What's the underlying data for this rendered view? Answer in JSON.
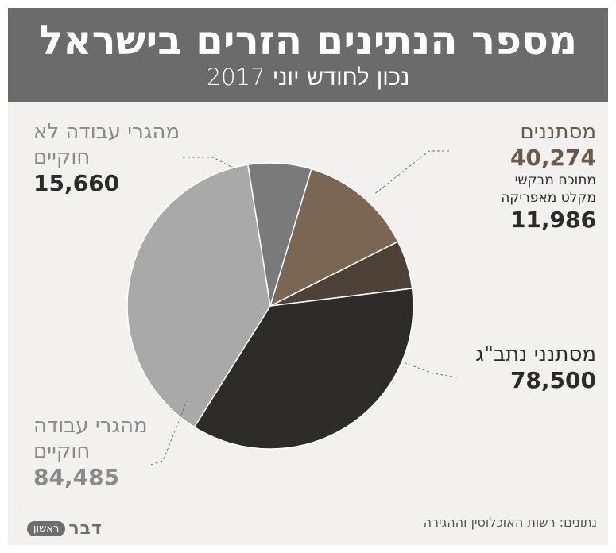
{
  "header": {
    "title": "מספר הנתינים הזרים בישראל",
    "subtitle": "נכון לחודש יוני 2017"
  },
  "labels": {
    "illegal_workers": {
      "name": "מהגרי עבודה לא חוקיים",
      "value": "15,660"
    },
    "asylum_seekers": {
      "name": "מסתננים",
      "value": "40,274",
      "sub_line1": "מתוכם מבקשי",
      "sub_line2": "מקלט מאפריקה",
      "sub_value": "11,986"
    },
    "ben_g": {
      "name": "מסתנני נתב\"ג",
      "value": "78,500"
    },
    "legal_workers": {
      "name_line1": "מהגרי עבודה",
      "name_line2": "חוקיים",
      "value": "84,485"
    }
  },
  "footer": {
    "source": "נתונים: רשות האוכלוסין וההגירה",
    "logo_pill": "ראשון",
    "logo_word": "דבר"
  },
  "colors": {
    "header_bg": "#6b6b6b",
    "background": "#f3f1ef",
    "illegal_workers": "#7a7a7a",
    "asylum_seekers": "#7a6652",
    "asylum_africa": "#4e4238",
    "ben_g": "#2e2c2b",
    "legal_workers": "#a9a9a9"
  },
  "chart_data": {
    "type": "pie",
    "title": "מספר הנתינים הזרים בישראל",
    "subtitle": "נכון לחודש יוני 2017",
    "slices": [
      {
        "label": "מהגרי עבודה לא חוקיים",
        "value": 15660,
        "color": "#7a7a7a"
      },
      {
        "label": "מסתננים",
        "value": 28288,
        "color": "#7a6652"
      },
      {
        "label": "מבקשי מקלט מאפריקה",
        "value": 11986,
        "color": "#4e4238"
      },
      {
        "label": "מסתנני נתב\"ג",
        "value": 78500,
        "color": "#2e2c2b"
      },
      {
        "label": "מהגרי עבודה חוקיים",
        "value": 84485,
        "color": "#a9a9a9"
      }
    ],
    "start_angle_deg": -9,
    "direction": "clockwise"
  }
}
